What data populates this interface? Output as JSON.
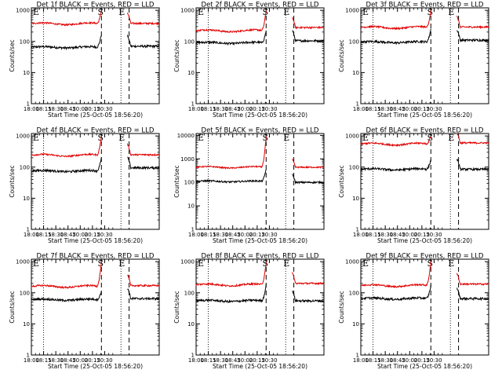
{
  "chart_data": [
    {
      "type": "line",
      "title": "Det 1f BLACK = Events, RED = LLD",
      "xlabel": "Start Time (25-Oct-05 18:56:20)",
      "ylabel": "Counts/sec",
      "xlim": [
        "18:00",
        "20:37"
      ],
      "ylim": [
        1,
        1200
      ],
      "yscale": "log",
      "xticks": [
        "18:00",
        "18:15",
        "18:30",
        "18:45",
        "20:00",
        "20:15",
        "20:30"
      ],
      "yticks": [
        "1",
        "10",
        "100",
        "1000"
      ],
      "markers": {
        "E": "E",
        "S": "S"
      },
      "series": [
        {
          "color": "#000000",
          "baseline": 65,
          "rise_end": 170,
          "post": 70
        },
        {
          "color": "#e00000",
          "baseline": 370,
          "rise_end": 1000,
          "post": 380
        }
      ]
    },
    {
      "type": "line",
      "title": "Det 2f BLACK = Events, RED = LLD",
      "xlabel": "Start Time (25-Oct-05 18:56:20)",
      "ylabel": "Counts/sec",
      "xlim": [
        "18:00",
        "20:37"
      ],
      "ylim": [
        1,
        1200
      ],
      "yscale": "log",
      "xticks": [
        "18:00",
        "18:15",
        "18:30",
        "18:45",
        "20:00",
        "20:15",
        "20:30"
      ],
      "yticks": [
        "1",
        "10",
        "100",
        "1000"
      ],
      "markers": {
        "E": "E",
        "S": "S"
      },
      "series": [
        {
          "color": "#000000",
          "baseline": 90,
          "rise_end": 220,
          "post": 105
        },
        {
          "color": "#e00000",
          "baseline": 220,
          "rise_end": 1000,
          "post": 280
        }
      ]
    },
    {
      "type": "line",
      "title": "Det 3f BLACK = Events, RED = LLD",
      "xlabel": "Start Time (25-Oct-05 18:56:20)",
      "ylabel": "Counts/sec",
      "xlim": [
        "18:00",
        "20:37"
      ],
      "ylim": [
        1,
        1200
      ],
      "yscale": "log",
      "xticks": [
        "18:00",
        "18:15",
        "18:30",
        "18:45",
        "20:00",
        "20:15",
        "20:30"
      ],
      "yticks": [
        "1",
        "10",
        "100",
        "1000"
      ],
      "markers": {
        "E": "E",
        "S": "S"
      },
      "series": [
        {
          "color": "#000000",
          "baseline": 95,
          "rise_end": 250,
          "post": 110
        },
        {
          "color": "#e00000",
          "baseline": 280,
          "rise_end": 1000,
          "post": 290
        }
      ]
    },
    {
      "type": "line",
      "title": "Det 4f BLACK = Events, RED = LLD",
      "xlabel": "Start Time (25-Oct-05 18:56:20)",
      "ylabel": "Counts/sec",
      "xlim": [
        "18:00",
        "20:37"
      ],
      "ylim": [
        1,
        1200
      ],
      "yscale": "log",
      "xticks": [
        "18:00",
        "18:15",
        "18:30",
        "18:45",
        "20:00",
        "20:15",
        "20:30"
      ],
      "yticks": [
        "1",
        "10",
        "100",
        "1000"
      ],
      "markers": {
        "E": "E",
        "S": "S"
      },
      "series": [
        {
          "color": "#000000",
          "baseline": 75,
          "rise_end": 200,
          "post": 95
        },
        {
          "color": "#e00000",
          "baseline": 240,
          "rise_end": 1000,
          "post": 250
        }
      ]
    },
    {
      "type": "line",
      "title": "Det 5f BLACK = Events, RED = LLD",
      "xlabel": "Start Time (25-Oct-05 18:56:20)",
      "ylabel": "Counts/sec",
      "xlim": [
        "18:00",
        "20:37"
      ],
      "ylim": [
        1,
        12000
      ],
      "yscale": "log",
      "xticks": [
        "18:00",
        "18:15",
        "18:30",
        "18:45",
        "20:00",
        "20:15",
        "20:30"
      ],
      "yticks": [
        "1",
        "10",
        "100",
        "1000",
        "10000"
      ],
      "markers": {
        "E": "E",
        "S": "S"
      },
      "series": [
        {
          "color": "#000000",
          "baseline": 110,
          "rise_end": 380,
          "post": 100
        },
        {
          "color": "#e00000",
          "baseline": 440,
          "rise_end": 9000,
          "post": 440
        }
      ]
    },
    {
      "type": "line",
      "title": "Det 6f BLACK = Events, RED = LLD",
      "xlabel": "Start Time (25-Oct-05 18:56:20)",
      "ylabel": "Counts/sec",
      "xlim": [
        "18:00",
        "20:37"
      ],
      "ylim": [
        1,
        1200
      ],
      "yscale": "log",
      "xticks": [
        "18:00",
        "18:15",
        "18:30",
        "18:45",
        "20:00",
        "20:15",
        "20:30"
      ],
      "yticks": [
        "1",
        "10",
        "100",
        "1000"
      ],
      "markers": {
        "E": "E",
        "S": "S"
      },
      "series": [
        {
          "color": "#000000",
          "baseline": 85,
          "rise_end": 170,
          "post": 85
        },
        {
          "color": "#e00000",
          "baseline": 550,
          "rise_end": 1000,
          "post": 600
        }
      ]
    },
    {
      "type": "line",
      "title": "Det 7f BLACK = Events, RED = LLD",
      "xlabel": "Start Time (25-Oct-05 18:56:20)",
      "ylabel": "Counts/sec",
      "xlim": [
        "18:00",
        "20:37"
      ],
      "ylim": [
        1,
        1200
      ],
      "yscale": "log",
      "xticks": [
        "18:00",
        "18:15",
        "18:30",
        "18:45",
        "20:00",
        "20:15",
        "20:30"
      ],
      "yticks": [
        "1",
        "10",
        "100",
        "1000"
      ],
      "markers": {
        "E": "E",
        "S": "S"
      },
      "series": [
        {
          "color": "#000000",
          "baseline": 60,
          "rise_end": 110,
          "post": 65
        },
        {
          "color": "#e00000",
          "baseline": 160,
          "rise_end": 1000,
          "post": 170
        }
      ]
    },
    {
      "type": "line",
      "title": "Det 8f BLACK = Events, RED = LLD",
      "xlabel": "Start Time (25-Oct-05 18:56:20)",
      "ylabel": "Counts/sec",
      "xlim": [
        "18:00",
        "20:37"
      ],
      "ylim": [
        1,
        1200
      ],
      "yscale": "log",
      "xticks": [
        "18:00",
        "18:15",
        "18:30",
        "18:45",
        "20:00",
        "20:15",
        "20:30"
      ],
      "yticks": [
        "1",
        "10",
        "100",
        "1000"
      ],
      "markers": {
        "E": "E",
        "S": "S"
      },
      "series": [
        {
          "color": "#000000",
          "baseline": 55,
          "rise_end": 180,
          "post": 55
        },
        {
          "color": "#e00000",
          "baseline": 180,
          "rise_end": 1000,
          "post": 200
        }
      ]
    },
    {
      "type": "line",
      "title": "Det 9f BLACK = Events, RED = LLD",
      "xlabel": "Start Time (25-Oct-05 18:56:20)",
      "ylabel": "Counts/sec",
      "xlim": [
        "18:00",
        "20:37"
      ],
      "ylim": [
        1,
        1200
      ],
      "yscale": "log",
      "xticks": [
        "18:00",
        "18:15",
        "18:30",
        "18:45",
        "20:00",
        "20:15",
        "20:30"
      ],
      "yticks": [
        "1",
        "10",
        "100",
        "1000"
      ],
      "markers": {
        "E": "E",
        "S": "S"
      },
      "series": [
        {
          "color": "#000000",
          "baseline": 65,
          "rise_end": 170,
          "post": 65
        },
        {
          "color": "#e00000",
          "baseline": 170,
          "rise_end": 1000,
          "post": 190
        }
      ]
    }
  ]
}
